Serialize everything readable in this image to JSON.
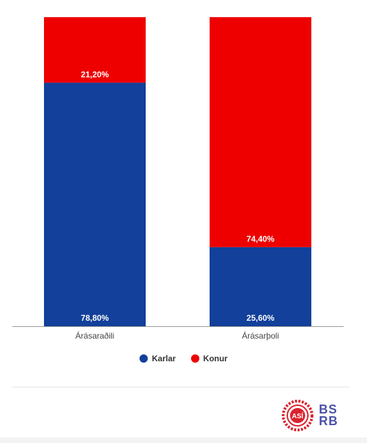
{
  "chart_data": {
    "type": "bar",
    "stacked": true,
    "percent_stacked": true,
    "categories": [
      "Árásaraðili",
      "Árásarþoli"
    ],
    "series": [
      {
        "name": "Karlar",
        "color": "#12409a",
        "values": [
          78.8,
          25.6
        ],
        "labels": [
          "78,80%",
          "25,60%"
        ]
      },
      {
        "name": "Konur",
        "color": "#ee0000",
        "values": [
          21.2,
          74.4
        ],
        "labels": [
          "21,20%",
          "74,40%"
        ]
      }
    ],
    "ylim": [
      0,
      100
    ],
    "grid": false,
    "legend": "bottom-center"
  },
  "logos": {
    "asi": {
      "icon": "asi-logo",
      "text": "ASÍ",
      "color": "#d9232e"
    },
    "bsrb": {
      "icon": "bsrb-logo",
      "line1": "BS",
      "line2": "RB",
      "color": "#4a52a8"
    }
  }
}
